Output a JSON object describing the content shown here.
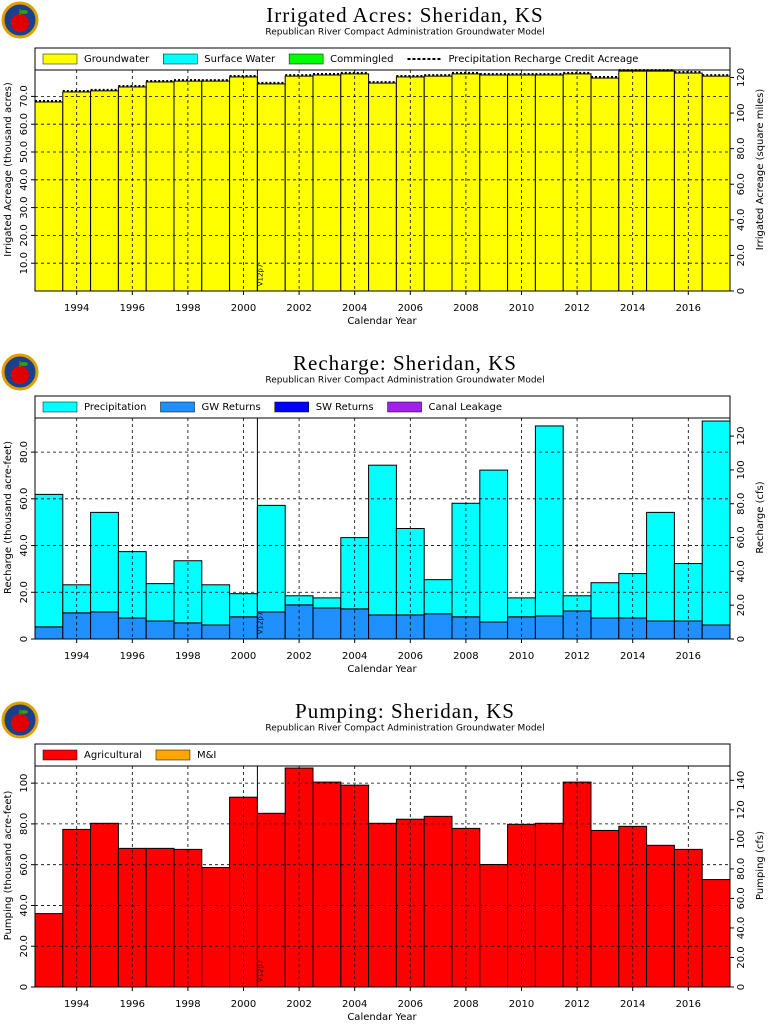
{
  "chart_data": [
    {
      "type": "bar",
      "title": "Irrigated Acres: Sheridan, KS",
      "subtitle": "Republican River Compact Administration Groundwater Model",
      "x_label": "Calendar Year",
      "y_label": "Irrigated Acreage (thousand acres)",
      "y2_label": "Irrigated Acreage (square miles)",
      "x": [
        1993,
        1994,
        1995,
        1996,
        1997,
        1998,
        1999,
        2000,
        2001,
        2002,
        2003,
        2004,
        2005,
        2006,
        2007,
        2008,
        2009,
        2010,
        2011,
        2012,
        2013,
        2014,
        2015,
        2016,
        2017
      ],
      "xlim": [
        1992.5,
        2017.5
      ],
      "xticks": [
        1994,
        1996,
        1998,
        2000,
        2002,
        2004,
        2006,
        2008,
        2010,
        2012,
        2014,
        2016
      ],
      "ylim": [
        0,
        79.5
      ],
      "yticks": [
        {
          "value": 10,
          "label": "10.0"
        },
        {
          "value": 20,
          "label": "20.0"
        },
        {
          "value": 30,
          "label": "30.0"
        },
        {
          "value": 40,
          "label": "40.0"
        },
        {
          "value": 50,
          "label": "50.0"
        },
        {
          "value": 60,
          "label": "60.0"
        },
        {
          "value": 70,
          "label": "70.0"
        }
      ],
      "y2lim": [
        0,
        124.2
      ],
      "y2ticks": [
        0,
        {
          "value": 20,
          "label": "20.0"
        },
        {
          "value": 40,
          "label": "40.0"
        },
        {
          "value": 60,
          "label": "60.0"
        },
        {
          "value": 80,
          "label": "80.0"
        },
        100,
        120
      ],
      "grid": true,
      "stacked": true,
      "annotation": {
        "text": "V12p7",
        "x": 2000.5
      },
      "series": [
        {
          "name": "Groundwater",
          "color": "#ffff00",
          "values": [
            68.0,
            71.6,
            72.0,
            73.4,
            75.2,
            75.5,
            75.5,
            77.0,
            74.5,
            77.3,
            77.7,
            78.1,
            74.8,
            77.0,
            77.3,
            78.1,
            77.7,
            77.7,
            77.7,
            78.1,
            76.6,
            79.1,
            79.1,
            78.4,
            77.3
          ]
        },
        {
          "name": "Surface Water",
          "color": "#00ffff",
          "values": [
            0,
            0,
            0,
            0,
            0,
            0,
            0,
            0,
            0,
            0,
            0,
            0,
            0,
            0,
            0,
            0,
            0,
            0,
            0,
            0,
            0,
            0,
            0,
            0,
            0
          ]
        },
        {
          "name": "Commingled",
          "color": "#00ff00",
          "values": [
            0,
            0,
            0,
            0,
            0,
            0,
            0,
            0,
            0,
            0,
            0,
            0,
            0,
            0,
            0,
            0,
            0,
            0,
            0,
            0,
            0,
            0,
            0,
            0,
            0
          ]
        },
        {
          "name": "Precipitation Recharge Credit Acreage",
          "color": "#000000",
          "style": "dashed",
          "values": [
            68.0,
            71.6,
            72.0,
            73.4,
            75.2,
            75.5,
            75.5,
            77.0,
            74.5,
            77.3,
            77.7,
            78.1,
            74.8,
            77.0,
            77.3,
            78.1,
            77.7,
            77.7,
            77.7,
            78.1,
            76.6,
            79.1,
            79.1,
            78.4,
            77.3
          ]
        }
      ]
    },
    {
      "type": "bar",
      "title": "Recharge: Sheridan, KS",
      "subtitle": "Republican River Compact Administration Groundwater Model",
      "x_label": "Calendar Year",
      "y_label": "Recharge (thousand acre-feet)",
      "y2_label": "Recharge (cfs)",
      "x": [
        1993,
        1994,
        1995,
        1996,
        1997,
        1998,
        1999,
        2000,
        2001,
        2002,
        2003,
        2004,
        2005,
        2006,
        2007,
        2008,
        2009,
        2010,
        2011,
        2012,
        2013,
        2014,
        2015,
        2016,
        2017
      ],
      "xlim": [
        1992.5,
        2017.5
      ],
      "xticks": [
        1994,
        1996,
        1998,
        2000,
        2002,
        2004,
        2006,
        2008,
        2010,
        2012,
        2014,
        2016
      ],
      "ylim": [
        0,
        94.6
      ],
      "yticks": [
        0,
        {
          "value": 20,
          "label": "20.0"
        },
        {
          "value": 40,
          "label": "40.0"
        },
        {
          "value": 60,
          "label": "60.0"
        },
        {
          "value": 80,
          "label": "80.0"
        }
      ],
      "y2lim": [
        0,
        130.7
      ],
      "y2ticks": [
        0,
        {
          "value": 20,
          "label": "20.0"
        },
        {
          "value": 40,
          "label": "40.0"
        },
        {
          "value": 60,
          "label": "60.0"
        },
        {
          "value": 80,
          "label": "80.0"
        },
        100,
        120
      ],
      "grid": true,
      "stacked": true,
      "annotation": {
        "text": "V12p7",
        "x": 2000.5
      },
      "series": [
        {
          "name": "GW Returns",
          "color": "#1e90ff",
          "legend_order": 1,
          "values": [
            5.2,
            11.2,
            11.6,
            9.0,
            7.7,
            6.9,
            6.0,
            9.5,
            11.6,
            14.6,
            13.3,
            12.9,
            10.3,
            10.3,
            10.8,
            9.5,
            7.3,
            9.5,
            9.9,
            12.0,
            9.0,
            9.0,
            7.7,
            7.7,
            6.0
          ]
        },
        {
          "name": "Precipitation",
          "color": "#00ffff",
          "legend_order": 0,
          "values": [
            56.7,
            12.0,
            42.6,
            28.4,
            16.0,
            26.6,
            17.2,
            9.9,
            45.6,
            3.9,
            4.3,
            30.5,
            64.1,
            37.0,
            14.6,
            48.6,
            65.0,
            8.1,
            81.3,
            6.5,
            15.1,
            19.0,
            46.5,
            24.6,
            87.3
          ]
        },
        {
          "name": "SW Returns",
          "color": "#0000ff",
          "legend_order": 2,
          "values": [
            0,
            0,
            0,
            0,
            0,
            0,
            0,
            0,
            0,
            0,
            0,
            0,
            0,
            0,
            0,
            0,
            0,
            0,
            0,
            0,
            0,
            0,
            0,
            0,
            0
          ]
        },
        {
          "name": "Canal Leakage",
          "color": "#a020f0",
          "legend_order": 3,
          "values": [
            0,
            0,
            0,
            0,
            0,
            0,
            0,
            0,
            0,
            0,
            0,
            0,
            0,
            0,
            0,
            0,
            0,
            0,
            0,
            0,
            0,
            0,
            0,
            0,
            0
          ]
        }
      ]
    },
    {
      "type": "bar",
      "title": "Pumping: Sheridan, KS",
      "subtitle": "Republican River Compact Administration Groundwater Model",
      "x_label": "Calendar Year",
      "y_label": "Pumping (thousand acre-feet)",
      "y2_label": "Pumping (cfs)",
      "x": [
        1993,
        1994,
        1995,
        1996,
        1997,
        1998,
        1999,
        2000,
        2001,
        2002,
        2003,
        2004,
        2005,
        2006,
        2007,
        2008,
        2009,
        2010,
        2011,
        2012,
        2013,
        2014,
        2015,
        2016,
        2017
      ],
      "xlim": [
        1992.5,
        2017.5
      ],
      "xticks": [
        1994,
        1996,
        1998,
        2000,
        2002,
        2004,
        2006,
        2008,
        2010,
        2012,
        2014,
        2016
      ],
      "ylim": [
        0,
        108.4
      ],
      "yticks": [
        0,
        {
          "value": 20,
          "label": "20.0"
        },
        {
          "value": 40,
          "label": "40.0"
        },
        {
          "value": 60,
          "label": "60.0"
        },
        {
          "value": 80,
          "label": "80.0"
        },
        100
      ],
      "y2lim": [
        0,
        149.7
      ],
      "y2ticks": [
        0,
        {
          "value": 20,
          "label": "20.0"
        },
        {
          "value": 40,
          "label": "40.0"
        },
        {
          "value": 60,
          "label": "60.0"
        },
        {
          "value": 80,
          "label": "80.0"
        },
        100,
        120,
        140
      ],
      "grid": true,
      "stacked": true,
      "annotation": {
        "text": "V12p7",
        "x": 2000.5
      },
      "series": [
        {
          "name": "Agricultural",
          "color": "#ff0000",
          "values": [
            36.0,
            77.3,
            80.3,
            68.0,
            68.0,
            67.5,
            58.6,
            93.1,
            85.2,
            107.4,
            100.5,
            99.0,
            80.3,
            82.3,
            83.7,
            77.8,
            60.1,
            79.8,
            80.3,
            100.5,
            76.8,
            78.8,
            69.5,
            67.5,
            52.7
          ]
        },
        {
          "name": "M&I",
          "color": "#ffa500",
          "values": [
            0,
            0,
            0,
            0,
            0,
            0,
            0,
            0,
            0,
            0,
            0,
            0,
            0,
            0,
            0,
            0,
            0,
            0,
            0,
            0,
            0,
            0,
            0,
            0,
            0
          ]
        }
      ]
    }
  ]
}
